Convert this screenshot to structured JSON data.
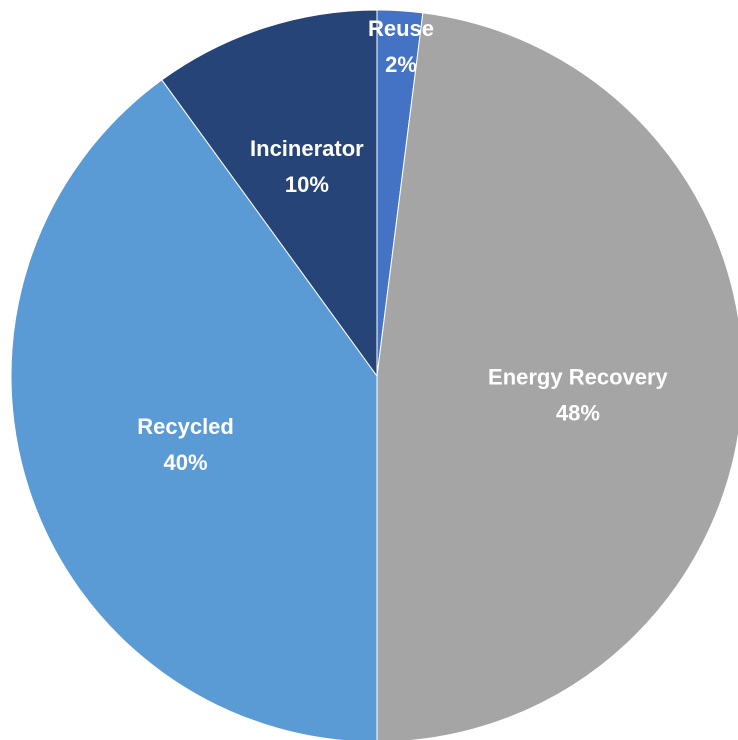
{
  "chart_data": {
    "type": "pie",
    "categories": [
      "Reuse",
      "Energy Recovery",
      "Recycled",
      "Incinerator"
    ],
    "values": [
      2,
      48,
      40,
      10
    ],
    "value_labels": [
      "2%",
      "48%",
      "40%",
      "10%"
    ],
    "colors": [
      "#4472C4",
      "#A5A5A5",
      "#5B9BD5",
      "#264478"
    ],
    "start_angle_deg": 0,
    "direction": "clockwise",
    "legend": "none",
    "data_labels": "inside"
  }
}
